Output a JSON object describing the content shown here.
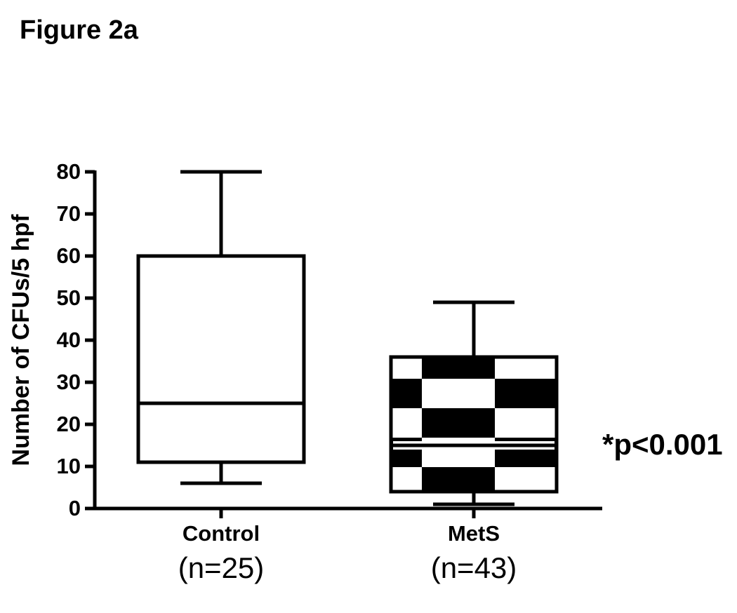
{
  "chart_data": {
    "type": "box",
    "title": "Figure 2a",
    "y_label": "Number of CFUs/5 hpf",
    "categories": [
      "Control",
      "MetS"
    ],
    "category_notes": [
      "(n=25)",
      "(n=43)"
    ],
    "boxes": [
      {
        "min": 6,
        "q1": 11,
        "median": 25,
        "q3": 60,
        "max": 80,
        "pattern": "none"
      },
      {
        "min": 1,
        "q1": 4,
        "median": 15,
        "q3": 36,
        "max": 49,
        "pattern": "checkerboard"
      }
    ],
    "annotation": "*p<0.001",
    "ylim": [
      0,
      80
    ],
    "yticks": [
      0,
      10,
      20,
      30,
      40,
      50,
      60,
      70,
      80
    ],
    "color": "#000000"
  }
}
